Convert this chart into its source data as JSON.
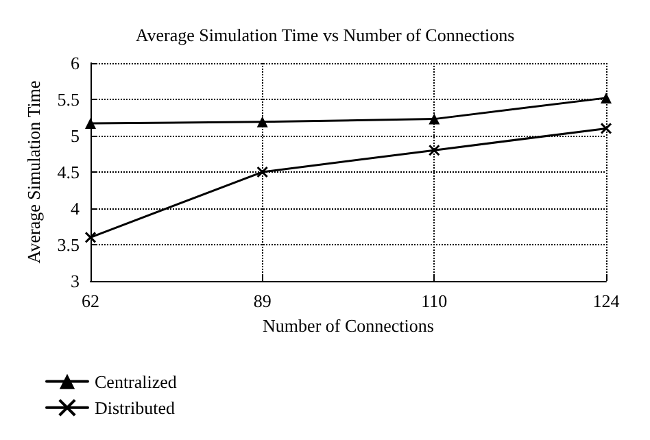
{
  "chart_data": {
    "type": "line",
    "title": "Average Simulation Time vs Number of Connections",
    "xlabel": "Number of Connections",
    "ylabel": "Average Simulation Time",
    "categories": [
      "62",
      "89",
      "110",
      "124"
    ],
    "series": [
      {
        "name": "Centralized",
        "color": "#000000",
        "marker": "triangle",
        "values": [
          5.17,
          5.19,
          5.23,
          5.52
        ]
      },
      {
        "name": "Distributed",
        "color": "#000000",
        "marker": "cross",
        "values": [
          3.6,
          4.5,
          4.8,
          5.1
        ]
      }
    ],
    "ylim": [
      3,
      6
    ],
    "yticks": [
      3,
      3.5,
      4,
      4.5,
      5,
      5.5,
      6
    ],
    "grid": true,
    "legend": "bottom left",
    "line_style": "solid"
  }
}
